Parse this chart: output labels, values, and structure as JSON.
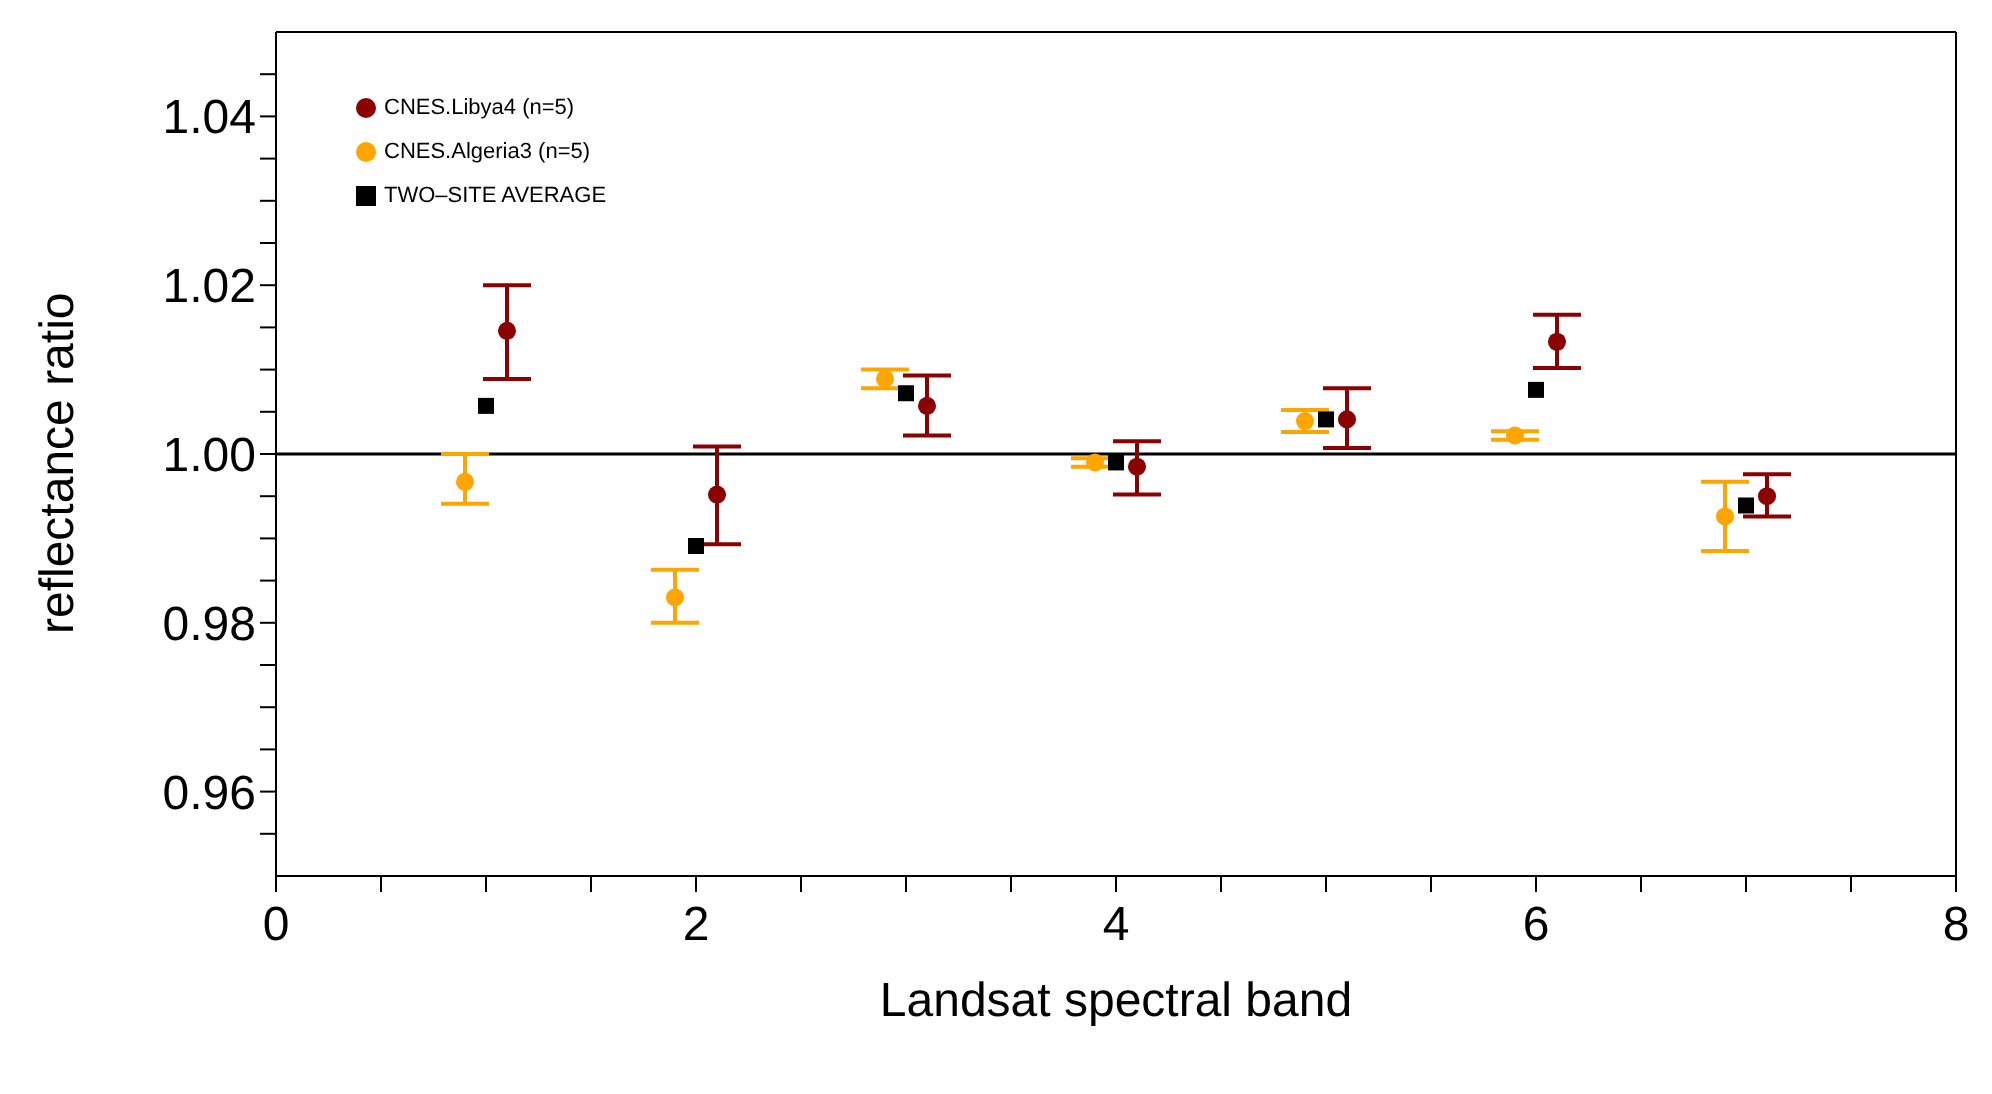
{
  "chart_data": {
    "type": "scatter",
    "xlabel": "Landsat spectral band",
    "ylabel": "reflectance ratio",
    "xlim": [
      0,
      8
    ],
    "xticks": [
      0,
      {
        "value": 0.5,
        "label": null
      },
      {
        "value": 1,
        "label": null
      },
      {
        "value": 1.5,
        "label": null
      },
      2,
      {
        "value": 2.5,
        "label": null
      },
      {
        "value": 3,
        "label": null
      },
      {
        "value": 3.5,
        "label": null
      },
      4,
      {
        "value": 4.5,
        "label": null
      },
      {
        "value": 5,
        "label": null
      },
      {
        "value": 5.5,
        "label": null
      },
      6,
      {
        "value": 6.5,
        "label": null
      },
      {
        "value": 7,
        "label": null
      },
      {
        "value": 7.5,
        "label": null
      },
      8
    ],
    "ylim": [
      0.95,
      1.05
    ],
    "yticks": [
      {
        "value": 0.955,
        "label": null
      },
      0.96,
      {
        "value": 0.965,
        "label": null
      },
      {
        "value": 0.97,
        "label": null
      },
      {
        "value": 0.975,
        "label": null
      },
      0.98,
      {
        "value": 0.985,
        "label": null
      },
      {
        "value": 0.99,
        "label": null
      },
      {
        "value": 0.995,
        "label": null
      },
      {
        "value": 1,
        "label": "1.00"
      },
      {
        "value": 1.005,
        "label": null
      },
      {
        "value": 1.01,
        "label": null
      },
      {
        "value": 1.015,
        "label": null
      },
      1.02,
      {
        "value": 1.025,
        "label": null
      },
      {
        "value": 1.03,
        "label": null
      },
      {
        "value": 1.035,
        "label": null
      },
      1.04,
      {
        "value": 1.045,
        "label": null
      }
    ],
    "ref_lines": [
      {
        "axis": "y",
        "value": 1,
        "color": "#000000"
      }
    ],
    "legend": "top left",
    "series": [
      {
        "name": "CNES.Libya4 (n=5)",
        "color": "#8b0000",
        "marker": "circle",
        "x": [
          1.1,
          2.1,
          3.1,
          4.1,
          5.1,
          6.1,
          7.1
        ],
        "values": [
          1.0146,
          0.9952,
          1.0057,
          0.9985,
          1.0041,
          1.0133,
          0.995
        ],
        "errors": [
          [
            1.0089,
            1.02
          ],
          [
            0.9893,
            1.0009
          ],
          [
            1.0022,
            1.0093
          ],
          [
            0.9952,
            1.0015
          ],
          [
            1.0007,
            1.0078
          ],
          [
            1.0102,
            1.0165
          ],
          [
            0.9926,
            0.9976
          ]
        ]
      },
      {
        "name": "CNES.Algeria3 (n=5)",
        "color": "#ffa500",
        "marker": "circle",
        "x": [
          0.9,
          1.9,
          2.9,
          3.9,
          4.9,
          5.9,
          6.9
        ],
        "values": [
          0.9967,
          0.983,
          1.0089,
          0.999,
          1.0039,
          1.0022,
          0.9926
        ],
        "errors": [
          [
            0.9941,
            1.0
          ],
          [
            0.98,
            0.9863
          ],
          [
            1.0078,
            1.01
          ],
          [
            0.9985,
            0.9995
          ],
          [
            1.0026,
            1.0052
          ],
          [
            1.0017,
            1.0027
          ],
          [
            0.9885,
            0.9967
          ]
        ]
      },
      {
        "name": "TWO–SITE AVERAGE",
        "color": "#000000",
        "marker": "square",
        "x": [
          1,
          2,
          3,
          4,
          5,
          6,
          7
        ],
        "values": [
          1.0057,
          0.9891,
          1.0072,
          0.999,
          1.0041,
          1.0076,
          0.9939
        ]
      }
    ]
  }
}
